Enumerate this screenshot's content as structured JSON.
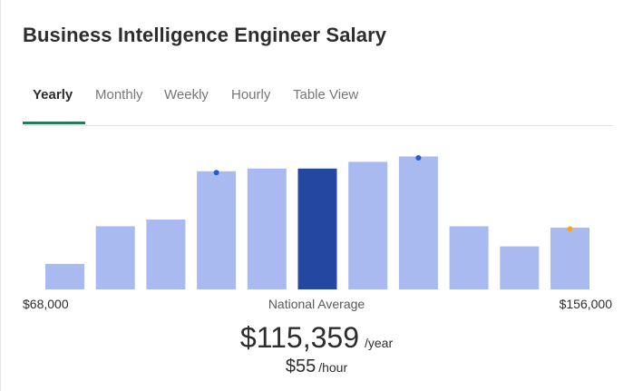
{
  "title": "Business Intelligence Engineer Salary",
  "tabs": [
    {
      "label": "Yearly",
      "active": true
    },
    {
      "label": "Monthly",
      "active": false
    },
    {
      "label": "Weekly",
      "active": false
    },
    {
      "label": "Hourly",
      "active": false
    },
    {
      "label": "Table View",
      "active": false
    }
  ],
  "colors": {
    "bar": "#a8baf0",
    "bar_highlight": "#2447a1",
    "tab_underline": "#2a7a5b",
    "marker_blue": "#1f5fd6",
    "marker_orange": "#f5a623"
  },
  "chart_data": {
    "type": "bar",
    "title": "",
    "xlabel": "",
    "ylabel": "",
    "min_label": "$68,000",
    "max_label": "$156,000",
    "average_label": "National Average",
    "values": [
      0.19,
      0.47,
      0.52,
      0.88,
      0.9,
      0.9,
      0.95,
      0.99,
      0.47,
      0.32,
      0.46
    ],
    "highlight_index": 5,
    "markers": [
      {
        "bar_index": 3,
        "color": "blue"
      },
      {
        "bar_index": 7,
        "color": "blue"
      },
      {
        "bar_index": 10,
        "color": "orange"
      }
    ]
  },
  "salary": {
    "yearly_value": "$115,359",
    "yearly_unit": "/year",
    "hourly_value": "$55",
    "hourly_unit": "/hour"
  }
}
